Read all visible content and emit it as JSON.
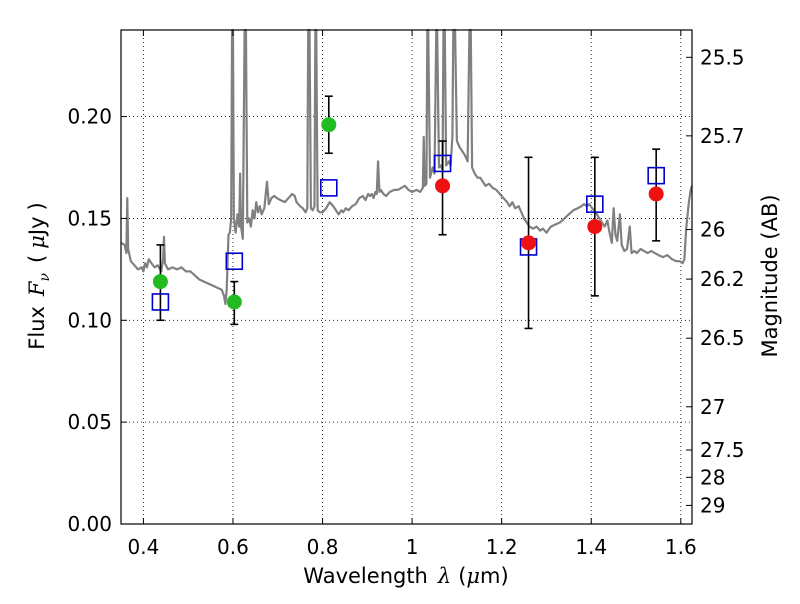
{
  "chart_data": {
    "type": "scatter",
    "title": "",
    "xlabel": {
      "prefix": "Wavelength",
      "symbol": "λ",
      "unit_open": "(",
      "unit_mu": "μ",
      "unit_rest": "m)"
    },
    "ylabel": {
      "prefix": "Flux",
      "symbol_main": "F",
      "symbol_sub": "ν",
      "unit_open": "(",
      "unit_mu": "μ",
      "unit_rest": "Jy",
      "unit_close": ")"
    },
    "y2label": "Magnitude (AB)",
    "xlim": [
      0.35,
      1.625
    ],
    "ylim": [
      0.0,
      0.2425
    ],
    "grid": true,
    "x_ticks": [
      {
        "value": 0.4,
        "label": "0.4"
      },
      {
        "value": 0.6,
        "label": "0.6"
      },
      {
        "value": 0.8,
        "label": "0.8"
      },
      {
        "value": 1.0,
        "label": "1"
      },
      {
        "value": 1.2,
        "label": "1.2"
      },
      {
        "value": 1.4,
        "label": "1.4"
      },
      {
        "value": 1.6,
        "label": "1.6"
      }
    ],
    "y_ticks": [
      {
        "value": 0.0,
        "label": "0.00"
      },
      {
        "value": 0.05,
        "label": "0.05"
      },
      {
        "value": 0.1,
        "label": "0.10"
      },
      {
        "value": 0.15,
        "label": "0.15"
      },
      {
        "value": 0.2,
        "label": "0.20"
      }
    ],
    "mag_ticks": [
      {
        "value": 25.5,
        "label": "25.5"
      },
      {
        "value": 25.7,
        "label": "25.7"
      },
      {
        "value": 26.0,
        "label": "26"
      },
      {
        "value": 26.2,
        "label": "26.2"
      },
      {
        "value": 26.5,
        "label": "26.5"
      },
      {
        "value": 27.0,
        "label": "27"
      },
      {
        "value": 27.5,
        "label": "27.5"
      },
      {
        "value": 28.0,
        "label": "28"
      },
      {
        "value": 29.0,
        "label": "29"
      }
    ],
    "series": [
      {
        "kind": "spectrum",
        "color": "#808080",
        "points": [
          [
            0.35,
            0.138
          ],
          [
            0.358,
            0.137
          ],
          [
            0.362,
            0.133
          ],
          [
            0.364,
            0.16
          ],
          [
            0.366,
            0.135
          ],
          [
            0.372,
            0.129
          ],
          [
            0.38,
            0.127
          ],
          [
            0.388,
            0.125
          ],
          [
            0.396,
            0.126
          ],
          [
            0.4,
            0.124
          ],
          [
            0.404,
            0.128
          ],
          [
            0.408,
            0.126
          ],
          [
            0.412,
            0.13
          ],
          [
            0.418,
            0.128
          ],
          [
            0.425,
            0.126
          ],
          [
            0.432,
            0.127
          ],
          [
            0.44,
            0.124
          ],
          [
            0.444,
            0.13
          ],
          [
            0.446,
            0.141
          ],
          [
            0.448,
            0.128
          ],
          [
            0.455,
            0.125
          ],
          [
            0.465,
            0.126
          ],
          [
            0.475,
            0.125
          ],
          [
            0.485,
            0.126
          ],
          [
            0.495,
            0.124
          ],
          [
            0.505,
            0.124
          ],
          [
            0.515,
            0.122
          ],
          [
            0.525,
            0.12
          ],
          [
            0.535,
            0.119
          ],
          [
            0.545,
            0.118
          ],
          [
            0.555,
            0.117
          ],
          [
            0.565,
            0.116
          ],
          [
            0.575,
            0.115
          ],
          [
            0.58,
            0.112
          ],
          [
            0.583,
            0.108
          ],
          [
            0.586,
            0.115
          ],
          [
            0.59,
            0.142
          ],
          [
            0.593,
            0.143
          ],
          [
            0.596,
            0.15
          ],
          [
            0.598,
            0.2425
          ],
          [
            0.6,
            0.2425
          ],
          [
            0.602,
            0.15
          ],
          [
            0.606,
            0.143
          ],
          [
            0.61,
            0.152
          ],
          [
            0.614,
            0.146
          ],
          [
            0.616,
            0.172
          ],
          [
            0.618,
            0.146
          ],
          [
            0.622,
            0.14
          ],
          [
            0.626,
            0.2425
          ],
          [
            0.629,
            0.2425
          ],
          [
            0.632,
            0.148
          ],
          [
            0.636,
            0.15
          ],
          [
            0.64,
            0.146
          ],
          [
            0.644,
            0.154
          ],
          [
            0.648,
            0.15
          ],
          [
            0.652,
            0.158
          ],
          [
            0.656,
            0.153
          ],
          [
            0.66,
            0.156
          ],
          [
            0.664,
            0.152
          ],
          [
            0.67,
            0.155
          ],
          [
            0.676,
            0.168
          ],
          [
            0.68,
            0.157
          ],
          [
            0.686,
            0.16
          ],
          [
            0.692,
            0.161
          ],
          [
            0.698,
            0.16
          ],
          [
            0.706,
            0.159
          ],
          [
            0.716,
            0.158
          ],
          [
            0.724,
            0.16
          ],
          [
            0.732,
            0.162
          ],
          [
            0.738,
            0.161
          ],
          [
            0.742,
            0.158
          ],
          [
            0.746,
            0.157
          ],
          [
            0.75,
            0.156
          ],
          [
            0.756,
            0.155
          ],
          [
            0.762,
            0.153
          ],
          [
            0.766,
            0.155
          ],
          [
            0.768,
            0.2425
          ],
          [
            0.771,
            0.2425
          ],
          [
            0.774,
            0.155
          ],
          [
            0.778,
            0.154
          ],
          [
            0.782,
            0.156
          ],
          [
            0.784,
            0.2425
          ],
          [
            0.786,
            0.2425
          ],
          [
            0.789,
            0.154
          ],
          [
            0.794,
            0.153
          ],
          [
            0.8,
            0.153
          ],
          [
            0.808,
            0.155
          ],
          [
            0.816,
            0.158
          ],
          [
            0.824,
            0.156
          ],
          [
            0.83,
            0.154
          ],
          [
            0.836,
            0.152
          ],
          [
            0.842,
            0.154
          ],
          [
            0.846,
            0.153
          ],
          [
            0.852,
            0.155
          ],
          [
            0.858,
            0.154
          ],
          [
            0.866,
            0.156
          ],
          [
            0.874,
            0.157
          ],
          [
            0.882,
            0.16
          ],
          [
            0.89,
            0.161
          ],
          [
            0.896,
            0.159
          ],
          [
            0.902,
            0.162
          ],
          [
            0.906,
            0.161
          ],
          [
            0.91,
            0.162
          ],
          [
            0.914,
            0.16
          ],
          [
            0.918,
            0.163
          ],
          [
            0.921,
            0.162
          ],
          [
            0.924,
            0.178
          ],
          [
            0.927,
            0.163
          ],
          [
            0.93,
            0.164
          ],
          [
            0.936,
            0.162
          ],
          [
            0.942,
            0.161
          ],
          [
            0.95,
            0.163
          ],
          [
            0.96,
            0.164
          ],
          [
            0.968,
            0.164
          ],
          [
            0.976,
            0.165
          ],
          [
            0.984,
            0.166
          ],
          [
            0.992,
            0.164
          ],
          [
            1.0,
            0.163
          ],
          [
            1.01,
            0.164
          ],
          [
            1.018,
            0.163
          ],
          [
            1.024,
            0.165
          ],
          [
            1.026,
            0.19
          ],
          [
            1.028,
            0.166
          ],
          [
            1.032,
            0.167
          ],
          [
            1.034,
            0.2425
          ],
          [
            1.036,
            0.2425
          ],
          [
            1.04,
            0.17
          ],
          [
            1.046,
            0.175
          ],
          [
            1.05,
            0.172
          ],
          [
            1.054,
            0.2425
          ],
          [
            1.056,
            0.2425
          ],
          [
            1.06,
            0.175
          ],
          [
            1.064,
            0.176
          ],
          [
            1.068,
            0.174
          ],
          [
            1.07,
            0.2425
          ],
          [
            1.073,
            0.2425
          ],
          [
            1.076,
            0.176
          ],
          [
            1.082,
            0.178
          ],
          [
            1.086,
            0.176
          ],
          [
            1.09,
            0.19
          ],
          [
            1.092,
            0.2425
          ],
          [
            1.096,
            0.2425
          ],
          [
            1.1,
            0.188
          ],
          [
            1.106,
            0.185
          ],
          [
            1.112,
            0.183
          ],
          [
            1.118,
            0.181
          ],
          [
            1.124,
            0.178
          ],
          [
            1.128,
            0.2425
          ],
          [
            1.131,
            0.2425
          ],
          [
            1.134,
            0.175
          ],
          [
            1.14,
            0.172
          ],
          [
            1.146,
            0.17
          ],
          [
            1.152,
            0.17
          ],
          [
            1.158,
            0.168
          ],
          [
            1.164,
            0.166
          ],
          [
            1.172,
            0.167
          ],
          [
            1.18,
            0.165
          ],
          [
            1.188,
            0.164
          ],
          [
            1.196,
            0.162
          ],
          [
            1.204,
            0.16
          ],
          [
            1.212,
            0.158
          ],
          [
            1.218,
            0.156
          ],
          [
            1.224,
            0.158
          ],
          [
            1.23,
            0.155
          ],
          [
            1.238,
            0.156
          ],
          [
            1.244,
            0.153
          ],
          [
            1.25,
            0.15
          ],
          [
            1.256,
            0.148
          ],
          [
            1.262,
            0.146
          ],
          [
            1.27,
            0.145
          ],
          [
            1.278,
            0.146
          ],
          [
            1.286,
            0.144
          ],
          [
            1.292,
            0.145
          ],
          [
            1.3,
            0.143
          ],
          [
            1.31,
            0.146
          ],
          [
            1.32,
            0.147
          ],
          [
            1.33,
            0.148
          ],
          [
            1.34,
            0.15
          ],
          [
            1.35,
            0.152
          ],
          [
            1.36,
            0.154
          ],
          [
            1.37,
            0.155
          ],
          [
            1.378,
            0.156
          ],
          [
            1.384,
            0.157
          ],
          [
            1.39,
            0.156
          ],
          [
            1.396,
            0.157
          ],
          [
            1.402,
            0.155
          ],
          [
            1.41,
            0.153
          ],
          [
            1.418,
            0.15
          ],
          [
            1.424,
            0.148
          ],
          [
            1.43,
            0.146
          ],
          [
            1.436,
            0.149
          ],
          [
            1.44,
            0.144
          ],
          [
            1.446,
            0.138
          ],
          [
            1.45,
            0.155
          ],
          [
            1.454,
            0.142
          ],
          [
            1.458,
            0.139
          ],
          [
            1.464,
            0.152
          ],
          [
            1.468,
            0.137
          ],
          [
            1.474,
            0.134
          ],
          [
            1.48,
            0.135
          ],
          [
            1.486,
            0.146
          ],
          [
            1.49,
            0.133
          ],
          [
            1.496,
            0.134
          ],
          [
            1.502,
            0.133
          ],
          [
            1.51,
            0.135
          ],
          [
            1.518,
            0.134
          ],
          [
            1.526,
            0.133
          ],
          [
            1.534,
            0.134
          ],
          [
            1.542,
            0.133
          ],
          [
            1.55,
            0.132
          ],
          [
            1.56,
            0.131
          ],
          [
            1.57,
            0.132
          ],
          [
            1.58,
            0.13
          ],
          [
            1.59,
            0.129
          ],
          [
            1.598,
            0.129
          ],
          [
            1.604,
            0.128
          ],
          [
            1.608,
            0.13
          ],
          [
            1.612,
            0.145
          ],
          [
            1.618,
            0.158
          ],
          [
            1.622,
            0.164
          ],
          [
            1.625,
            0.166
          ]
        ]
      },
      {
        "kind": "errorbars",
        "color": "#000000",
        "points": [
          {
            "x": 0.438,
            "y": 0.119,
            "lo": 0.1,
            "hi": 0.137
          },
          {
            "x": 0.603,
            "y": 0.109,
            "lo": 0.098,
            "hi": 0.119
          },
          {
            "x": 0.814,
            "y": 0.196,
            "lo": 0.182,
            "hi": 0.21
          },
          {
            "x": 1.068,
            "y": 0.166,
            "lo": 0.142,
            "hi": 0.188
          },
          {
            "x": 1.26,
            "y": 0.138,
            "lo": 0.096,
            "hi": 0.18
          },
          {
            "x": 1.408,
            "y": 0.146,
            "lo": 0.112,
            "hi": 0.18
          },
          {
            "x": 1.545,
            "y": 0.162,
            "lo": 0.139,
            "hi": 0.184
          }
        ]
      },
      {
        "kind": "squares",
        "color": "#0000cc",
        "points": [
          {
            "x": 0.438,
            "y": 0.109
          },
          {
            "x": 0.603,
            "y": 0.129
          },
          {
            "x": 0.814,
            "y": 0.165
          },
          {
            "x": 1.068,
            "y": 0.177
          },
          {
            "x": 1.26,
            "y": 0.136
          },
          {
            "x": 1.408,
            "y": 0.157
          },
          {
            "x": 1.545,
            "y": 0.171
          }
        ]
      },
      {
        "kind": "circles",
        "color": "#22bb22",
        "points": [
          {
            "x": 0.438,
            "y": 0.119
          },
          {
            "x": 0.603,
            "y": 0.109
          },
          {
            "x": 0.814,
            "y": 0.196
          }
        ]
      },
      {
        "kind": "circles",
        "color": "#ee1111",
        "points": [
          {
            "x": 1.068,
            "y": 0.166
          },
          {
            "x": 1.26,
            "y": 0.138
          },
          {
            "x": 1.408,
            "y": 0.146
          },
          {
            "x": 1.545,
            "y": 0.162
          }
        ]
      }
    ]
  }
}
